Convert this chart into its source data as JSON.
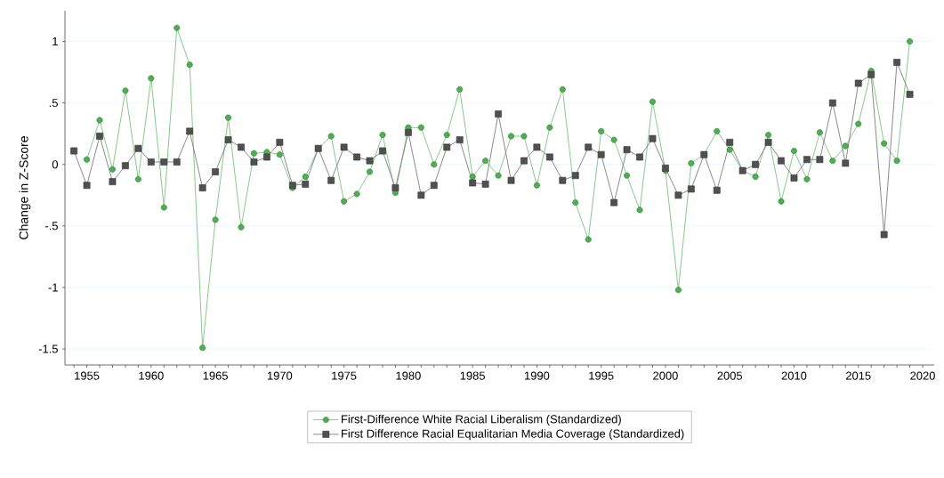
{
  "chart_data": {
    "type": "line",
    "ylabel": "Change in Z-Score",
    "xlim": [
      1953.3,
      2020.9
    ],
    "ylim": [
      -1.63,
      1.25
    ],
    "xticks": [
      {
        "value": 1954,
        "label": null
      },
      1955,
      {
        "value": 1956,
        "label": null
      },
      {
        "value": 1957,
        "label": null
      },
      {
        "value": 1958,
        "label": null
      },
      {
        "value": 1959,
        "label": null
      },
      1960,
      {
        "value": 1961,
        "label": null
      },
      {
        "value": 1962,
        "label": null
      },
      {
        "value": 1963,
        "label": null
      },
      {
        "value": 1964,
        "label": null
      },
      1965,
      {
        "value": 1966,
        "label": null
      },
      {
        "value": 1967,
        "label": null
      },
      {
        "value": 1968,
        "label": null
      },
      {
        "value": 1969,
        "label": null
      },
      1970,
      {
        "value": 1971,
        "label": null
      },
      {
        "value": 1972,
        "label": null
      },
      {
        "value": 1973,
        "label": null
      },
      {
        "value": 1974,
        "label": null
      },
      1975,
      {
        "value": 1976,
        "label": null
      },
      {
        "value": 1977,
        "label": null
      },
      {
        "value": 1978,
        "label": null
      },
      {
        "value": 1979,
        "label": null
      },
      1980,
      {
        "value": 1981,
        "label": null
      },
      {
        "value": 1982,
        "label": null
      },
      {
        "value": 1983,
        "label": null
      },
      {
        "value": 1984,
        "label": null
      },
      1985,
      {
        "value": 1986,
        "label": null
      },
      {
        "value": 1987,
        "label": null
      },
      {
        "value": 1988,
        "label": null
      },
      {
        "value": 1989,
        "label": null
      },
      1990,
      {
        "value": 1991,
        "label": null
      },
      {
        "value": 1992,
        "label": null
      },
      {
        "value": 1993,
        "label": null
      },
      {
        "value": 1994,
        "label": null
      },
      1995,
      {
        "value": 1996,
        "label": null
      },
      {
        "value": 1997,
        "label": null
      },
      {
        "value": 1998,
        "label": null
      },
      {
        "value": 1999,
        "label": null
      },
      2000,
      {
        "value": 2001,
        "label": null
      },
      {
        "value": 2002,
        "label": null
      },
      {
        "value": 2003,
        "label": null
      },
      {
        "value": 2004,
        "label": null
      },
      2005,
      {
        "value": 2006,
        "label": null
      },
      {
        "value": 2007,
        "label": null
      },
      {
        "value": 2008,
        "label": null
      },
      {
        "value": 2009,
        "label": null
      },
      2010,
      {
        "value": 2011,
        "label": null
      },
      {
        "value": 2012,
        "label": null
      },
      {
        "value": 2013,
        "label": null
      },
      {
        "value": 2014,
        "label": null
      },
      2015,
      {
        "value": 2016,
        "label": null
      },
      {
        "value": 2017,
        "label": null
      },
      {
        "value": 2018,
        "label": null
      },
      {
        "value": 2019,
        "label": null
      },
      2020
    ],
    "yticks": [
      {
        "value": -1.5,
        "label": "-1.5"
      },
      -1,
      {
        "value": -0.5,
        "label": "-.5"
      },
      0,
      {
        "value": 0.5,
        "label": ".5"
      },
      1
    ],
    "grid": "y",
    "legend": "bottom",
    "series": [
      {
        "name": "First-Difference White Racial Liberalism (Standardized)",
        "color": "#4cb050",
        "marker": "circle",
        "x": [
          1955,
          1956,
          1957,
          1958,
          1959,
          1960,
          1961,
          1962,
          1963,
          1964,
          1965,
          1966,
          1967,
          1968,
          1969,
          1970,
          1971,
          1972,
          1973,
          1974,
          1975,
          1976,
          1977,
          1978,
          1979,
          1980,
          1981,
          1982,
          1983,
          1984,
          1985,
          1986,
          1987,
          1988,
          1989,
          1990,
          1991,
          1992,
          1993,
          1994,
          1995,
          1996,
          1997,
          1998,
          1999,
          2000,
          2001,
          2002,
          2003,
          2004,
          2005,
          2006,
          2007,
          2008,
          2009,
          2010,
          2011,
          2012,
          2013,
          2014,
          2015,
          2016,
          2017,
          2018,
          2019
        ],
        "values": [
          0.04,
          0.36,
          -0.04,
          0.6,
          -0.12,
          0.7,
          -0.35,
          1.11,
          0.81,
          -1.49,
          -0.45,
          0.38,
          -0.51,
          0.09,
          0.1,
          0.08,
          -0.19,
          -0.1,
          0.13,
          0.23,
          -0.3,
          -0.24,
          -0.06,
          0.24,
          -0.23,
          0.3,
          0.3,
          0.0,
          0.24,
          0.61,
          -0.1,
          0.03,
          -0.09,
          0.23,
          0.23,
          -0.17,
          0.3,
          0.61,
          -0.31,
          -0.61,
          0.27,
          0.2,
          -0.09,
          -0.37,
          0.51,
          -0.05,
          -1.02,
          0.01,
          0.08,
          0.27,
          0.12,
          -0.05,
          -0.1,
          0.24,
          -0.3,
          0.11,
          -0.12,
          0.26,
          0.03,
          0.15,
          0.33,
          0.76,
          0.17,
          0.03,
          1.0
        ]
      },
      {
        "name": "First Difference Racial Equalitarian Media Coverage (Standardized)",
        "color": "#505050",
        "marker": "square",
        "x": [
          1954,
          1955,
          1956,
          1957,
          1958,
          1959,
          1960,
          1961,
          1962,
          1963,
          1964,
          1965,
          1966,
          1967,
          1968,
          1969,
          1970,
          1971,
          1972,
          1973,
          1974,
          1975,
          1976,
          1977,
          1978,
          1979,
          1980,
          1981,
          1982,
          1983,
          1984,
          1985,
          1986,
          1987,
          1988,
          1989,
          1990,
          1991,
          1992,
          1993,
          1994,
          1995,
          1996,
          1997,
          1998,
          1999,
          2000,
          2001,
          2002,
          2003,
          2004,
          2005,
          2006,
          2007,
          2008,
          2009,
          2010,
          2011,
          2012,
          2013,
          2014,
          2015,
          2016,
          2017,
          2018,
          2019
        ],
        "values": [
          0.11,
          -0.17,
          0.23,
          -0.14,
          -0.01,
          0.13,
          0.02,
          0.02,
          0.02,
          0.27,
          -0.19,
          -0.06,
          0.2,
          0.14,
          0.02,
          0.06,
          0.18,
          -0.17,
          -0.16,
          0.13,
          -0.13,
          0.14,
          0.06,
          0.03,
          0.11,
          -0.19,
          0.26,
          -0.25,
          -0.17,
          0.14,
          0.2,
          -0.15,
          -0.16,
          0.41,
          -0.13,
          0.03,
          0.14,
          0.06,
          -0.13,
          -0.09,
          0.14,
          0.08,
          -0.31,
          0.12,
          0.06,
          0.21,
          -0.03,
          -0.25,
          -0.2,
          0.08,
          -0.21,
          0.18,
          -0.05,
          0.0,
          0.18,
          0.03,
          -0.11,
          0.04,
          0.04,
          0.5,
          0.01,
          0.66,
          0.73,
          -0.57,
          0.83,
          0.57
        ]
      }
    ]
  }
}
